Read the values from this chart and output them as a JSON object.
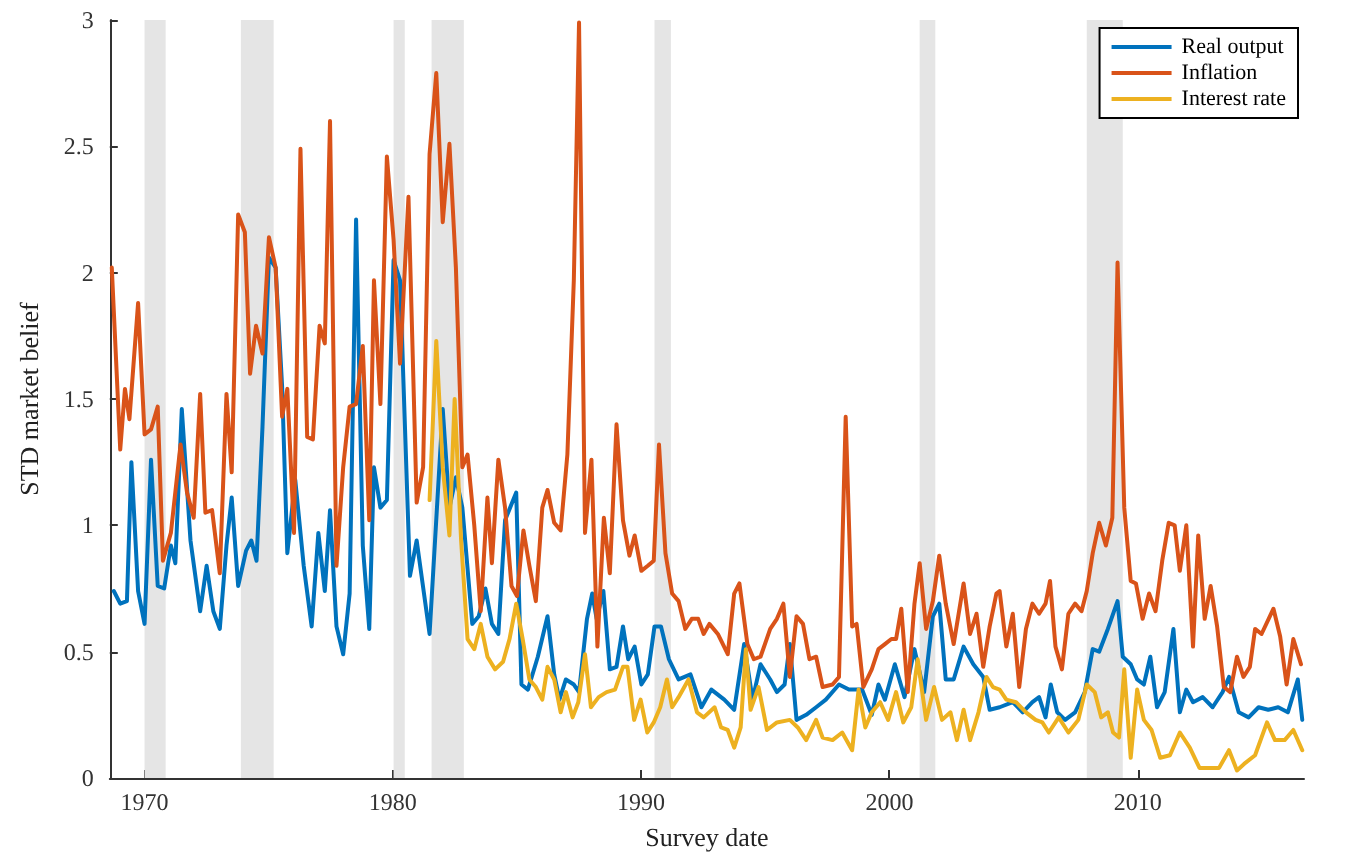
{
  "chart_data": {
    "type": "line",
    "xlabel": "Survey date",
    "ylabel": "STD market belief",
    "xlim": [
      1968.6,
      2016.7
    ],
    "xticks": [
      1970,
      1980,
      1990,
      2000,
      2010
    ],
    "ylim": [
      0,
      3
    ],
    "yticks": [
      0,
      0.5,
      1,
      1.5,
      2,
      2.5,
      3
    ],
    "legend": "top right",
    "grid": false,
    "marker": "none",
    "line_style": "solid",
    "bands": [
      {
        "axis": "x",
        "from": 1970.0,
        "to": 1970.85,
        "color": "#e5e5e5"
      },
      {
        "axis": "x",
        "from": 1973.88,
        "to": 1975.2,
        "color": "#e5e5e5"
      },
      {
        "axis": "x",
        "from": 1980.03,
        "to": 1980.48,
        "color": "#e5e5e5"
      },
      {
        "axis": "x",
        "from": 1981.56,
        "to": 1982.86,
        "color": "#e5e5e5"
      },
      {
        "axis": "x",
        "from": 1990.54,
        "to": 1991.2,
        "color": "#e5e5e5"
      },
      {
        "axis": "x",
        "from": 2001.22,
        "to": 2001.85,
        "color": "#e5e5e5"
      },
      {
        "axis": "x",
        "from": 2007.95,
        "to": 2009.4,
        "color": "#e5e5e5"
      }
    ],
    "series": [
      {
        "name": "Real output",
        "color": "#0072bd",
        "x": [
          1968.76,
          1969.02,
          1969.29,
          1969.47,
          1969.74,
          1970.0,
          1970.26,
          1970.53,
          1970.79,
          1971.06,
          1971.24,
          1971.5,
          1971.85,
          1972.24,
          1972.5,
          1972.77,
          1973.03,
          1973.3,
          1973.51,
          1973.77,
          1974.09,
          1974.3,
          1974.51,
          1974.75,
          1975.01,
          1975.28,
          1975.54,
          1975.75,
          1976.07,
          1976.41,
          1976.73,
          1977.0,
          1977.26,
          1977.47,
          1977.73,
          1978.0,
          1978.26,
          1978.52,
          1978.79,
          1979.05,
          1979.24,
          1979.5,
          1979.76,
          1980.03,
          1980.29,
          1980.69,
          1980.96,
          1981.48,
          1982.01,
          1982.28,
          1982.54,
          1982.8,
          1983.2,
          1983.46,
          1983.73,
          1983.99,
          1984.25,
          1984.52,
          1984.97,
          1985.18,
          1985.44,
          1985.84,
          1986.23,
          1986.5,
          1986.71,
          1986.97,
          1987.29,
          1987.5,
          1987.82,
          1988.03,
          1988.21,
          1988.48,
          1988.74,
          1989.01,
          1989.27,
          1989.48,
          1989.74,
          1990.01,
          1990.27,
          1990.54,
          1990.8,
          1991.12,
          1991.51,
          1991.99,
          1992.43,
          1992.83,
          1993.35,
          1993.75,
          1994.15,
          1994.49,
          1994.81,
          1995.2,
          1995.47,
          1995.78,
          1995.99,
          1996.26,
          1996.65,
          1997.05,
          1997.44,
          1997.97,
          1998.37,
          1998.9,
          1999.29,
          1999.56,
          1999.82,
          2000.22,
          2000.61,
          2001.01,
          2001.4,
          2001.75,
          2002.01,
          2002.27,
          2002.59,
          2002.99,
          2003.38,
          2003.78,
          2004.04,
          2004.44,
          2004.97,
          2005.37,
          2005.76,
          2006.03,
          2006.29,
          2006.5,
          2006.76,
          2007.08,
          2007.48,
          2007.87,
          2008.19,
          2008.45,
          2008.8,
          2009.19,
          2009.4,
          2009.72,
          2009.98,
          2010.25,
          2010.51,
          2010.78,
          2011.09,
          2011.44,
          2011.7,
          2011.96,
          2012.23,
          2012.62,
          2013.02,
          2013.42,
          2013.68,
          2014.07,
          2014.47,
          2014.87,
          2015.26,
          2015.66,
          2016.05,
          2016.45,
          2016.63
        ],
        "values": [
          0.74,
          0.69,
          0.7,
          1.25,
          0.74,
          0.61,
          1.26,
          0.76,
          0.75,
          0.92,
          0.85,
          1.46,
          0.94,
          0.66,
          0.84,
          0.66,
          0.59,
          0.92,
          1.11,
          0.76,
          0.9,
          0.94,
          0.86,
          1.39,
          2.06,
          2.02,
          1.55,
          0.89,
          1.18,
          0.84,
          0.6,
          0.97,
          0.74,
          1.06,
          0.6,
          0.49,
          0.73,
          2.21,
          0.92,
          0.59,
          1.23,
          1.07,
          1.1,
          2.05,
          1.97,
          0.8,
          0.94,
          0.57,
          1.46,
          1.07,
          1.19,
          1.07,
          0.61,
          0.64,
          0.75,
          0.61,
          0.57,
          1.02,
          1.13,
          0.37,
          0.35,
          0.48,
          0.64,
          0.41,
          0.31,
          0.39,
          0.37,
          0.34,
          0.63,
          0.73,
          0.63,
          0.74,
          0.43,
          0.44,
          0.6,
          0.47,
          0.52,
          0.37,
          0.41,
          0.6,
          0.6,
          0.47,
          0.39,
          0.41,
          0.28,
          0.35,
          0.31,
          0.27,
          0.53,
          0.31,
          0.45,
          0.39,
          0.34,
          0.37,
          0.53,
          0.23,
          0.25,
          0.28,
          0.31,
          0.37,
          0.35,
          0.35,
          0.25,
          0.37,
          0.31,
          0.45,
          0.32,
          0.51,
          0.34,
          0.64,
          0.69,
          0.39,
          0.39,
          0.52,
          0.45,
          0.4,
          0.27,
          0.28,
          0.3,
          0.26,
          0.3,
          0.32,
          0.24,
          0.37,
          0.26,
          0.23,
          0.26,
          0.34,
          0.51,
          0.5,
          0.59,
          0.7,
          0.48,
          0.45,
          0.39,
          0.37,
          0.48,
          0.28,
          0.34,
          0.59,
          0.26,
          0.35,
          0.3,
          0.32,
          0.28,
          0.34,
          0.4,
          0.26,
          0.24,
          0.28,
          0.27,
          0.28,
          0.26,
          0.39,
          0.23
        ]
      },
      {
        "name": "Inflation",
        "color": "#d95319",
        "x": [
          1968.68,
          1969.02,
          1969.21,
          1969.39,
          1969.74,
          1970.0,
          1970.26,
          1970.53,
          1970.74,
          1971.06,
          1971.45,
          1971.71,
          1971.98,
          1972.24,
          1972.45,
          1972.72,
          1973.03,
          1973.3,
          1973.51,
          1973.77,
          1974.04,
          1974.25,
          1974.49,
          1974.75,
          1975.01,
          1975.28,
          1975.54,
          1975.75,
          1976.02,
          1976.28,
          1976.55,
          1976.78,
          1977.05,
          1977.26,
          1977.47,
          1977.73,
          1978.0,
          1978.26,
          1978.52,
          1978.79,
          1979.05,
          1979.24,
          1979.5,
          1979.76,
          1980.03,
          1980.29,
          1980.63,
          1980.96,
          1981.22,
          1981.48,
          1981.75,
          1982.01,
          1982.28,
          1982.54,
          1982.8,
          1983.01,
          1983.28,
          1983.54,
          1983.81,
          1983.99,
          1984.25,
          1984.52,
          1984.78,
          1985.0,
          1985.26,
          1985.5,
          1985.76,
          1986.02,
          1986.23,
          1986.5,
          1986.76,
          1987.03,
          1987.29,
          1987.5,
          1987.74,
          1988.0,
          1988.24,
          1988.5,
          1988.74,
          1989.01,
          1989.27,
          1989.53,
          1989.74,
          1990.01,
          1990.27,
          1990.51,
          1990.72,
          1990.98,
          1991.25,
          1991.51,
          1991.78,
          1992.04,
          1992.3,
          1992.52,
          1992.75,
          1993.09,
          1993.49,
          1993.75,
          1993.96,
          1994.28,
          1994.54,
          1994.81,
          1995.2,
          1995.47,
          1995.73,
          1995.99,
          1996.26,
          1996.52,
          1996.78,
          1997.05,
          1997.31,
          1997.71,
          1997.97,
          1998.24,
          1998.5,
          1998.68,
          1998.95,
          1999.29,
          1999.56,
          1999.82,
          2000.08,
          2000.27,
          2000.48,
          2000.74,
          2001.01,
          2001.22,
          2001.48,
          2001.75,
          2002.01,
          2002.27,
          2002.59,
          2002.99,
          2003.25,
          2003.51,
          2003.78,
          2004.04,
          2004.31,
          2004.44,
          2004.71,
          2004.97,
          2005.23,
          2005.5,
          2005.76,
          2006.03,
          2006.29,
          2006.47,
          2006.69,
          2006.95,
          2007.21,
          2007.48,
          2007.74,
          2007.95,
          2008.19,
          2008.45,
          2008.72,
          2008.98,
          2009.19,
          2009.46,
          2009.72,
          2009.93,
          2010.2,
          2010.46,
          2010.72,
          2010.99,
          2011.25,
          2011.49,
          2011.7,
          2011.96,
          2012.23,
          2012.44,
          2012.7,
          2012.94,
          2013.2,
          2013.47,
          2013.73,
          2014.0,
          2014.26,
          2014.52,
          2014.73,
          2014.99,
          2015.47,
          2015.74,
          2016.0,
          2016.27,
          2016.58
        ],
        "values": [
          2.02,
          1.3,
          1.54,
          1.42,
          1.88,
          1.36,
          1.38,
          1.47,
          0.86,
          0.97,
          1.32,
          1.13,
          1.03,
          1.52,
          1.05,
          1.06,
          0.81,
          1.52,
          1.21,
          2.23,
          2.16,
          1.6,
          1.79,
          1.68,
          2.14,
          2.02,
          1.43,
          1.54,
          0.97,
          2.49,
          1.35,
          1.34,
          1.79,
          1.72,
          2.6,
          0.84,
          1.23,
          1.47,
          1.48,
          1.71,
          1.02,
          1.97,
          1.48,
          2.46,
          2.13,
          1.64,
          2.3,
          1.09,
          1.23,
          2.47,
          2.79,
          2.2,
          2.51,
          2.02,
          1.23,
          1.28,
          1.0,
          0.66,
          1.11,
          0.85,
          1.26,
          1.07,
          0.76,
          0.72,
          0.98,
          0.84,
          0.7,
          1.07,
          1.14,
          1.01,
          0.98,
          1.28,
          1.97,
          2.99,
          0.97,
          1.26,
          0.52,
          1.03,
          0.81,
          1.4,
          1.02,
          0.88,
          0.96,
          0.82,
          0.84,
          0.86,
          1.32,
          0.89,
          0.73,
          0.7,
          0.59,
          0.63,
          0.63,
          0.57,
          0.61,
          0.57,
          0.49,
          0.73,
          0.77,
          0.53,
          0.47,
          0.48,
          0.59,
          0.63,
          0.69,
          0.4,
          0.64,
          0.61,
          0.47,
          0.48,
          0.36,
          0.37,
          0.4,
          1.43,
          0.6,
          0.61,
          0.36,
          0.43,
          0.51,
          0.53,
          0.55,
          0.55,
          0.67,
          0.34,
          0.69,
          0.85,
          0.59,
          0.7,
          0.88,
          0.69,
          0.53,
          0.77,
          0.57,
          0.65,
          0.44,
          0.6,
          0.73,
          0.74,
          0.52,
          0.65,
          0.36,
          0.59,
          0.69,
          0.65,
          0.69,
          0.78,
          0.52,
          0.43,
          0.65,
          0.69,
          0.66,
          0.74,
          0.89,
          1.01,
          0.92,
          1.03,
          2.04,
          1.07,
          0.78,
          0.77,
          0.63,
          0.73,
          0.66,
          0.86,
          1.01,
          1.0,
          0.82,
          1.0,
          0.52,
          0.96,
          0.63,
          0.76,
          0.6,
          0.36,
          0.34,
          0.48,
          0.4,
          0.44,
          0.59,
          0.57,
          0.67,
          0.56,
          0.37,
          0.55,
          0.45
        ]
      },
      {
        "name": "Interest rate",
        "color": "#edb120",
        "x": [
          1981.48,
          1981.75,
          1982.01,
          1982.28,
          1982.49,
          1982.75,
          1983.01,
          1983.28,
          1983.54,
          1983.81,
          1984.12,
          1984.44,
          1984.7,
          1984.97,
          1985.23,
          1985.5,
          1985.76,
          1986.02,
          1986.23,
          1986.5,
          1986.76,
          1986.97,
          1987.24,
          1987.47,
          1987.74,
          1987.98,
          1988.29,
          1988.61,
          1988.95,
          1989.27,
          1989.45,
          1989.72,
          1989.98,
          1990.25,
          1990.51,
          1990.77,
          1991.04,
          1991.25,
          1991.51,
          1991.91,
          1992.25,
          1992.52,
          1992.96,
          1993.22,
          1993.49,
          1993.75,
          1994.01,
          1994.22,
          1994.41,
          1994.73,
          1995.07,
          1995.47,
          1995.99,
          1996.31,
          1996.65,
          1997.05,
          1997.31,
          1997.71,
          1998.1,
          1998.5,
          1998.76,
          1999.03,
          1999.29,
          1999.63,
          1999.95,
          2000.27,
          2000.56,
          2000.88,
          2001.14,
          2001.48,
          2001.8,
          2002.12,
          2002.46,
          2002.72,
          2002.99,
          2003.25,
          2003.59,
          2003.91,
          2004.17,
          2004.44,
          2004.71,
          2005.1,
          2005.5,
          2005.89,
          2006.16,
          2006.42,
          2006.82,
          2007.21,
          2007.61,
          2007.95,
          2008.27,
          2008.53,
          2008.8,
          2009.01,
          2009.25,
          2009.46,
          2009.72,
          2009.98,
          2010.25,
          2010.56,
          2010.91,
          2011.3,
          2011.7,
          2012.1,
          2012.49,
          2012.89,
          2013.28,
          2013.68,
          2014.0,
          2014.34,
          2014.73,
          2015.21,
          2015.53,
          2015.92,
          2016.27,
          2016.63
        ],
        "values": [
          1.1,
          1.73,
          1.23,
          0.96,
          1.5,
          0.94,
          0.55,
          0.51,
          0.61,
          0.48,
          0.43,
          0.46,
          0.55,
          0.69,
          0.55,
          0.39,
          0.36,
          0.31,
          0.44,
          0.39,
          0.26,
          0.34,
          0.24,
          0.3,
          0.49,
          0.28,
          0.32,
          0.34,
          0.35,
          0.44,
          0.44,
          0.23,
          0.31,
          0.18,
          0.22,
          0.28,
          0.39,
          0.28,
          0.32,
          0.39,
          0.26,
          0.24,
          0.28,
          0.2,
          0.19,
          0.12,
          0.2,
          0.51,
          0.27,
          0.36,
          0.19,
          0.22,
          0.23,
          0.2,
          0.15,
          0.23,
          0.16,
          0.15,
          0.18,
          0.11,
          0.35,
          0.2,
          0.26,
          0.3,
          0.23,
          0.34,
          0.22,
          0.28,
          0.47,
          0.23,
          0.36,
          0.23,
          0.26,
          0.15,
          0.27,
          0.15,
          0.26,
          0.4,
          0.36,
          0.35,
          0.31,
          0.3,
          0.26,
          0.23,
          0.22,
          0.18,
          0.24,
          0.18,
          0.23,
          0.37,
          0.34,
          0.24,
          0.26,
          0.18,
          0.16,
          0.43,
          0.08,
          0.35,
          0.23,
          0.19,
          0.08,
          0.09,
          0.18,
          0.12,
          0.04,
          0.04,
          0.04,
          0.11,
          0.03,
          0.06,
          0.09,
          0.22,
          0.15,
          0.15,
          0.19,
          0.11
        ]
      }
    ]
  }
}
